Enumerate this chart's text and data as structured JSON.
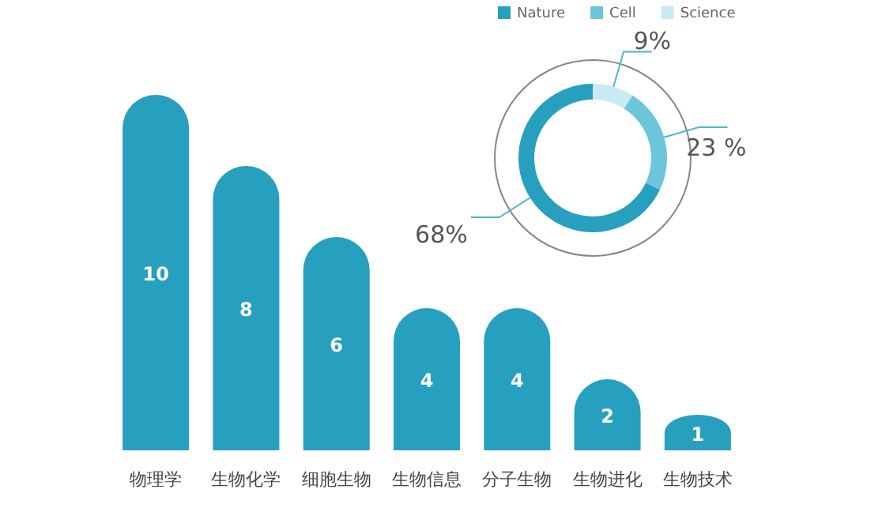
{
  "chart_data": [
    {
      "type": "bar",
      "categories": [
        "物理学",
        "生物化学",
        "细胞生物",
        "生物信息",
        "分子生物",
        "生物进化",
        "生物技术"
      ],
      "values": [
        10,
        8,
        6,
        4,
        4,
        2,
        1
      ],
      "color": "#27a0bf",
      "data_labels": true
    },
    {
      "type": "donut",
      "categories": [
        "Nature",
        "Cell",
        "Science"
      ],
      "values": [
        68,
        23,
        9
      ],
      "colors": [
        "#27a0bf",
        "#6cc6db",
        "#c9eaf2"
      ],
      "value_labels": [
        "68%",
        "23 %",
        "9%"
      ],
      "legend": "top"
    }
  ]
}
